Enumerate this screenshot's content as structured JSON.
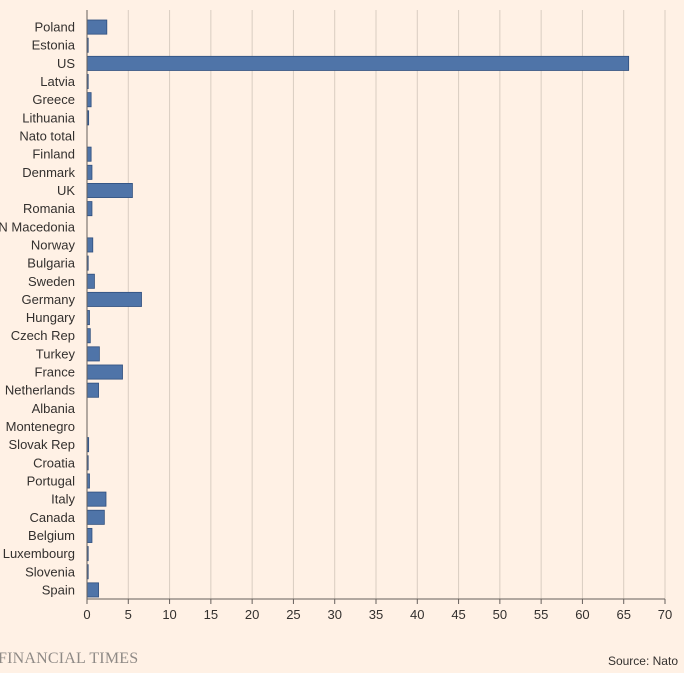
{
  "chart_data": {
    "type": "bar",
    "orientation": "horizontal",
    "categories": [
      "Poland",
      "Estonia",
      "US",
      "Latvia",
      "Greece",
      "Lithuania",
      "Nato total",
      "Finland",
      "Denmark",
      "UK",
      "Romania",
      "N Macedonia",
      "Norway",
      "Bulgaria",
      "Sweden",
      "Germany",
      "Hungary",
      "Czech Rep",
      "Turkey",
      "France",
      "Netherlands",
      "Albania",
      "Montenegro",
      "Slovak Rep",
      "Croatia",
      "Portugal",
      "Italy",
      "Canada",
      "Belgium",
      "Luxembourg",
      "Slovenia",
      "Spain"
    ],
    "values": [
      2.4,
      0.1,
      65.6,
      0.1,
      0.5,
      0.2,
      0,
      0.5,
      0.6,
      5.5,
      0.6,
      0,
      0.7,
      0.1,
      0.9,
      6.6,
      0.3,
      0.4,
      1.5,
      4.3,
      1.4,
      0,
      0,
      0.2,
      0.1,
      0.3,
      2.3,
      2.1,
      0.6,
      0.05,
      0.1,
      1.4
    ],
    "xlim": [
      0,
      70
    ],
    "xticks": [
      0,
      5,
      10,
      15,
      20,
      25,
      30,
      35,
      40,
      45,
      50,
      55,
      60,
      65,
      70
    ],
    "grid": true,
    "bar_color": "#4f74a8"
  },
  "footer": {
    "brand": "FINANCIAL TIMES",
    "source": "Source: Nato"
  }
}
